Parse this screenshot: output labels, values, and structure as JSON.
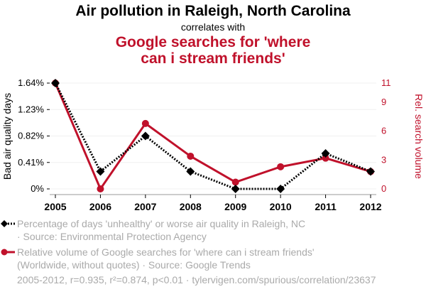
{
  "title": "Air pollution in Raleigh, North Carolina",
  "subtitle": "correlates with",
  "title2": "Google searches for 'where can i stream friends'",
  "legend": [
    {
      "line1": "Percentage of days 'unhealthy' or worse air quality in Raleigh, NC",
      "line2": "· Source: Environmental Protection Agency"
    },
    {
      "line1": "Relative volume of Google searches for 'where can i stream friends'",
      "line2": "(Worldwide, without quotes) · Source: Google Trends"
    }
  ],
  "footer": "2005-2012, r=0.935, r²=0.874, p<0.01 · tylervigen.com/spurious/correlation/23637",
  "chart_data": {
    "type": "line",
    "x": [
      "2005",
      "2006",
      "2007",
      "2008",
      "2009",
      "2010",
      "2011",
      "2012"
    ],
    "ylabel": "Bad air quality days",
    "y2label": "Rel. search volume",
    "yticks": [
      "0%",
      "0.41%",
      "0.82%",
      "1.23%",
      "1.64%"
    ],
    "y2ticks": [
      "0",
      "3",
      "6",
      "9",
      "11"
    ],
    "ylim": [
      0,
      1.64
    ],
    "y2lim": [
      0,
      11
    ],
    "colors": {
      "air": "#000000",
      "search": "#c0112b"
    },
    "series": [
      {
        "name": "Air pollution",
        "axis": "left",
        "values": [
          1.64,
          0.27,
          0.82,
          0.27,
          0,
          0,
          0.55,
          0.27
        ]
      },
      {
        "name": "Google searches",
        "axis": "right",
        "values": [
          11,
          0,
          6.8,
          3.4,
          0.7,
          2.3,
          3.2,
          1.8
        ]
      }
    ]
  }
}
